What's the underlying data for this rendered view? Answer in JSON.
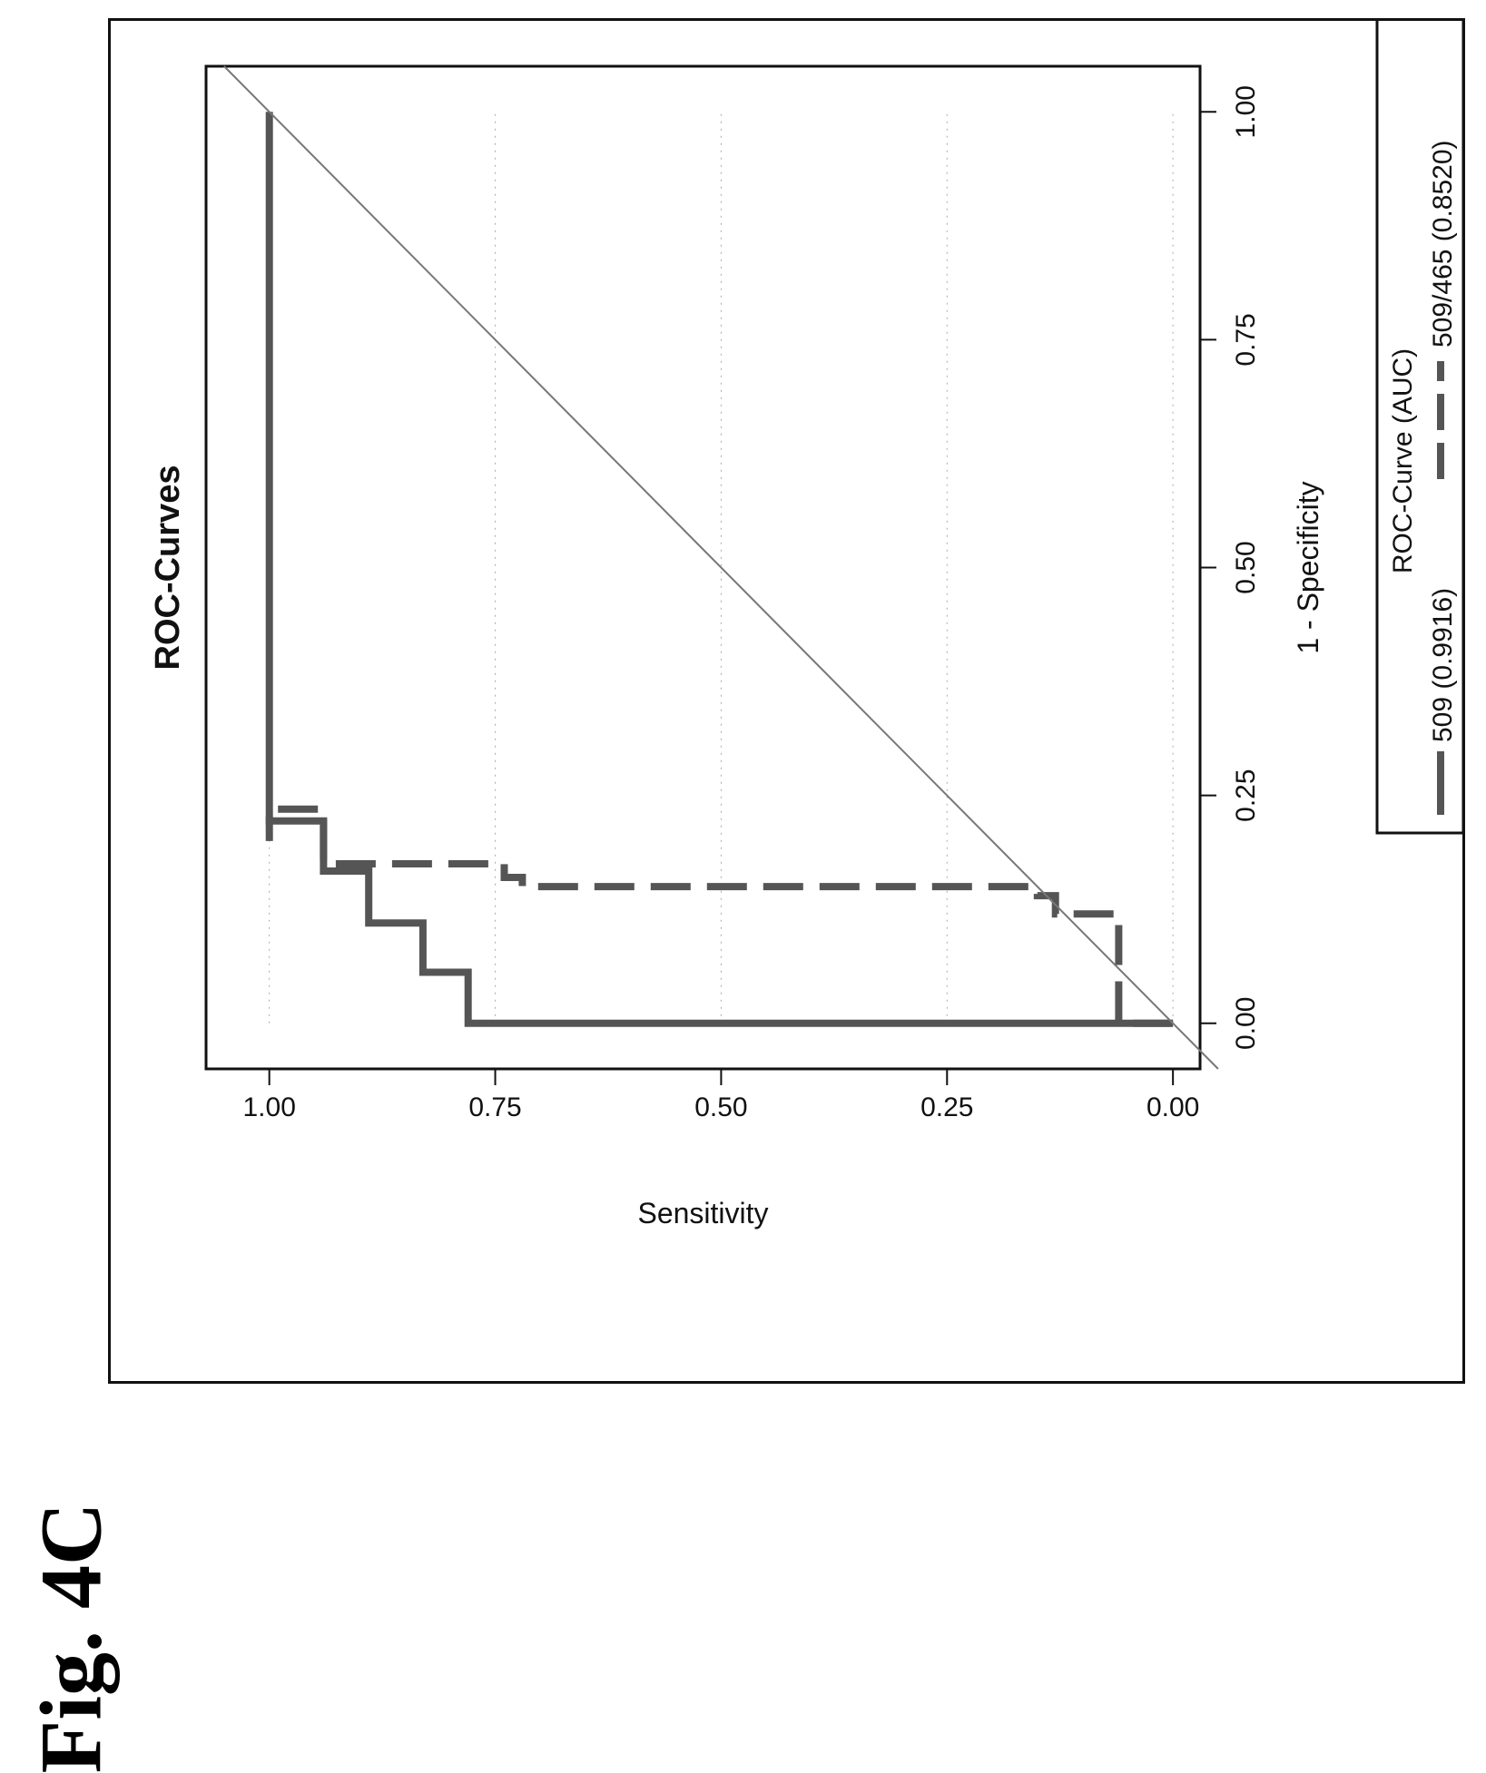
{
  "figure_label": "Fig. 4C",
  "chart_data": {
    "type": "line",
    "title": "ROC-Curves",
    "xlabel": "1 - Specificity",
    "ylabel": "Sensitivity",
    "xlim": [
      -0.05,
      1.05
    ],
    "ylim": [
      -0.03,
      1.07
    ],
    "x_ticks": [
      0.0,
      0.25,
      0.5,
      0.75,
      1.0
    ],
    "y_ticks": [
      0.0,
      0.25,
      0.5,
      0.75,
      1.0
    ],
    "x_tick_labels": [
      "0.00",
      "0.25",
      "0.50",
      "0.75",
      "1.00"
    ],
    "y_tick_labels": [
      "0.00",
      "0.25",
      "0.50",
      "0.75",
      "1.00"
    ],
    "grid": "dotted, faint",
    "legend": {
      "title": "ROC-Curve (AUC)",
      "position": "bottom",
      "entries": [
        {
          "label": "509",
          "value": "(0.9916)",
          "style": "solid"
        },
        {
          "label": "509/465",
          "value": "(0.8520)",
          "style": "dashed"
        }
      ]
    },
    "series": [
      {
        "name": "509",
        "auc": 0.9916,
        "style": "solid",
        "color": "#555555",
        "points": [
          [
            0.0,
            0.0
          ],
          [
            0.0,
            0.78
          ],
          [
            0.056,
            0.78
          ],
          [
            0.056,
            0.83
          ],
          [
            0.11,
            0.83
          ],
          [
            0.11,
            0.89
          ],
          [
            0.167,
            0.89
          ],
          [
            0.167,
            0.94
          ],
          [
            0.222,
            0.94
          ],
          [
            0.222,
            1.0
          ],
          [
            1.0,
            1.0
          ]
        ]
      },
      {
        "name": "509/465",
        "auc": 0.852,
        "style": "dashed",
        "color": "#555555",
        "points": [
          [
            0.0,
            0.0
          ],
          [
            0.0,
            0.06
          ],
          [
            0.12,
            0.06
          ],
          [
            0.12,
            0.13
          ],
          [
            0.14,
            0.13
          ],
          [
            0.14,
            0.15
          ],
          [
            0.15,
            0.15
          ],
          [
            0.15,
            0.72
          ],
          [
            0.16,
            0.72
          ],
          [
            0.16,
            0.74
          ],
          [
            0.175,
            0.74
          ],
          [
            0.175,
            0.94
          ],
          [
            0.235,
            0.94
          ],
          [
            0.235,
            1.0
          ],
          [
            0.2,
            1.0
          ]
        ]
      },
      {
        "name": "",
        "style": "thin",
        "color": "#777777",
        "points": [
          [
            -0.05,
            -0.05
          ],
          [
            1.05,
            1.05
          ]
        ]
      }
    ]
  }
}
